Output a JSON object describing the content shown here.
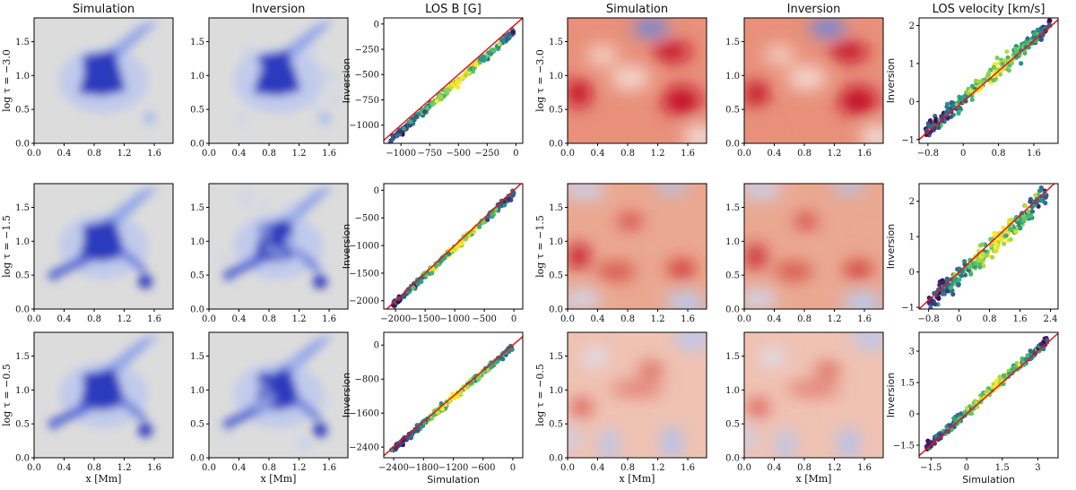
{
  "figure": {
    "column_titles": [
      "Simulation",
      "Inversion",
      "LOS B [G]",
      "Simulation",
      "Inversion",
      "LOS velocity [km/s]"
    ],
    "row_labels": [
      "log τ = −3.0",
      "log τ = −1.5",
      "log τ = −0.5"
    ],
    "map_xlabel": "x [Mm]",
    "scatter_xlabel": "Simulation",
    "scatter_ylabel": "Inversion",
    "colors": {
      "b_map_strong": "#2b3bbd",
      "b_map_background": "#dcdcdc",
      "v_map_red": "#c41125",
      "v_map_blue": "#5a86e8",
      "fit_line": "#e8141a",
      "scatter_low": "#440154",
      "scatter_mid": "#21918c",
      "scatter_high": "#fde725"
    }
  },
  "chart_data": [
    {
      "type": "heatmap",
      "title": "Simulation",
      "quantity": "LOS B",
      "row": "log τ = −3.0",
      "xlim": [
        0,
        1.85
      ],
      "ylim": [
        0,
        1.85
      ],
      "xticks": [
        "0.0",
        "0.4",
        "0.8",
        "1.2",
        "1.6"
      ],
      "yticks": [
        "0.0",
        "0.5",
        "1.0",
        "1.5"
      ]
    },
    {
      "type": "heatmap",
      "title": "Inversion",
      "quantity": "LOS B",
      "row": "log τ = −3.0",
      "xlim": [
        0,
        1.85
      ],
      "ylim": [
        0,
        1.85
      ],
      "xticks": [
        "0.0",
        "0.4",
        "0.8",
        "1.2",
        "1.6"
      ],
      "yticks": [
        "0.0",
        "0.5",
        "1.0",
        "1.5"
      ]
    },
    {
      "type": "scatter",
      "title": "LOS B [G]",
      "row": "log τ = −3.0",
      "x_range": [
        -1100,
        0
      ],
      "xlim": [
        -1150,
        60
      ],
      "ylim": [
        -1180,
        60
      ],
      "xticks": [
        -1000,
        -750,
        -500,
        -250,
        0
      ],
      "yticks": [
        -1000,
        -750,
        -500,
        -250,
        0
      ],
      "fit": {
        "slope": 1.0,
        "offset": -60
      },
      "spread": 30
    },
    {
      "type": "heatmap",
      "title": "Simulation",
      "quantity": "LOS velocity",
      "row": "log τ = −3.0",
      "xlim": [
        0,
        1.85
      ],
      "ylim": [
        0,
        1.85
      ],
      "xticks": [
        "0.0",
        "0.4",
        "0.8",
        "1.2",
        "1.6"
      ],
      "yticks": [
        "0.0",
        "0.5",
        "1.0",
        "1.5"
      ]
    },
    {
      "type": "heatmap",
      "title": "Inversion",
      "quantity": "LOS velocity",
      "row": "log τ = −3.0",
      "xlim": [
        0,
        1.85
      ],
      "ylim": [
        0,
        1.85
      ],
      "xticks": [
        "0.0",
        "0.4",
        "0.8",
        "1.2",
        "1.6"
      ],
      "yticks": [
        "0.0",
        "0.5",
        "1.0",
        "1.5"
      ]
    },
    {
      "type": "scatter",
      "title": "LOS velocity [km/s]",
      "row": "log τ = −3.0",
      "x_range": [
        -0.85,
        2.0
      ],
      "xlim": [
        -1.0,
        2.15
      ],
      "ylim": [
        -1.1,
        2.2
      ],
      "xticks": [
        -0.8,
        0.0,
        0.8,
        1.6
      ],
      "yticks": [
        -1,
        0,
        1,
        2
      ],
      "fit": {
        "slope": 1.0,
        "offset": 0.05
      },
      "spread": 0.18
    },
    {
      "type": "heatmap",
      "title": "Simulation",
      "quantity": "LOS B",
      "row": "log τ = −1.5",
      "xlim": [
        0,
        1.85
      ],
      "ylim": [
        0,
        1.85
      ],
      "xticks": [
        "0.0",
        "0.4",
        "0.8",
        "1.2",
        "1.6"
      ],
      "yticks": [
        "0.0",
        "0.5",
        "1.0",
        "1.5"
      ]
    },
    {
      "type": "heatmap",
      "title": "Inversion",
      "quantity": "LOS B",
      "row": "log τ = −1.5",
      "xlim": [
        0,
        1.85
      ],
      "ylim": [
        0,
        1.85
      ],
      "xticks": [
        "0.0",
        "0.4",
        "0.8",
        "1.2",
        "1.6"
      ],
      "yticks": [
        "0.0",
        "0.5",
        "1.0",
        "1.5"
      ]
    },
    {
      "type": "scatter",
      "title": "",
      "row": "log τ = −1.5",
      "x_range": [
        -2050,
        0
      ],
      "xlim": [
        -2200,
        150
      ],
      "ylim": [
        -2150,
        120
      ],
      "xticks": [
        -2000,
        -1500,
        -1000,
        -500,
        0
      ],
      "yticks": [
        -2000,
        -1500,
        -1000,
        -500,
        0
      ],
      "fit": {
        "slope": 1.0,
        "offset": -40
      },
      "spread": 50
    },
    {
      "type": "heatmap",
      "title": "Simulation",
      "quantity": "LOS velocity",
      "row": "log τ = −1.5",
      "xlim": [
        0,
        1.85
      ],
      "ylim": [
        0,
        1.85
      ],
      "xticks": [
        "0.0",
        "0.4",
        "0.8",
        "1.2",
        "1.6"
      ],
      "yticks": [
        "0.0",
        "0.5",
        "1.0",
        "1.5"
      ]
    },
    {
      "type": "heatmap",
      "title": "Inversion",
      "quantity": "LOS velocity",
      "row": "log τ = −1.5",
      "xlim": [
        0,
        1.85
      ],
      "ylim": [
        0,
        1.85
      ],
      "xticks": [
        "0.0",
        "0.4",
        "0.8",
        "1.2",
        "1.6"
      ],
      "yticks": [
        "0.0",
        "0.5",
        "1.0",
        "1.5"
      ]
    },
    {
      "type": "scatter",
      "title": "",
      "row": "log τ = −1.5",
      "x_range": [
        -0.8,
        2.3
      ],
      "xlim": [
        -1.05,
        2.6
      ],
      "ylim": [
        -1.05,
        2.5
      ],
      "xticks": [
        -0.8,
        0.0,
        0.8,
        1.6,
        2.4
      ],
      "yticks": [
        -1,
        0,
        1,
        2
      ],
      "fit": {
        "slope": 1.0,
        "offset": -0.1
      },
      "spread": 0.25
    },
    {
      "type": "heatmap",
      "title": "Simulation",
      "quantity": "LOS B",
      "row": "log τ = −0.5",
      "xlim": [
        0,
        1.85
      ],
      "ylim": [
        0,
        1.85
      ],
      "xticks": [
        "0.0",
        "0.4",
        "0.8",
        "1.2",
        "1.6"
      ],
      "yticks": [
        "0.0",
        "0.5",
        "1.0",
        "1.5"
      ]
    },
    {
      "type": "heatmap",
      "title": "Inversion",
      "quantity": "LOS B",
      "row": "log τ = −0.5",
      "xlim": [
        0,
        1.85
      ],
      "ylim": [
        0,
        1.85
      ],
      "xticks": [
        "0.0",
        "0.4",
        "0.8",
        "1.2",
        "1.6"
      ],
      "yticks": [
        "0.0",
        "0.5",
        "1.0",
        "1.5"
      ]
    },
    {
      "type": "scatter",
      "title": "",
      "row": "log τ = −0.5",
      "x_range": [
        -2450,
        0
      ],
      "xlim": [
        -2600,
        200
      ],
      "ylim": [
        -2650,
        300
      ],
      "xticks": [
        -2400,
        -1800,
        -1200,
        -600,
        0
      ],
      "yticks": [
        -2400,
        -1600,
        -800,
        0
      ],
      "fit": {
        "slope": 1.0,
        "offset": -40
      },
      "spread": 60
    },
    {
      "type": "heatmap",
      "title": "Simulation",
      "quantity": "LOS velocity",
      "row": "log τ = −0.5",
      "xlim": [
        0,
        1.85
      ],
      "ylim": [
        0,
        1.85
      ],
      "xticks": [
        "0.0",
        "0.4",
        "0.8",
        "1.2",
        "1.6"
      ],
      "yticks": [
        "0.0",
        "0.5",
        "1.0",
        "1.5"
      ]
    },
    {
      "type": "heatmap",
      "title": "Inversion",
      "quantity": "LOS velocity",
      "row": "log τ = −0.5",
      "xlim": [
        0,
        1.85
      ],
      "ylim": [
        0,
        1.85
      ],
      "xticks": [
        "0.0",
        "0.4",
        "0.8",
        "1.2",
        "1.6"
      ],
      "yticks": [
        "0.0",
        "0.5",
        "1.0",
        "1.5"
      ]
    },
    {
      "type": "scatter",
      "title": "",
      "row": "log τ = −0.5",
      "x_range": [
        -1.7,
        3.4
      ],
      "xlim": [
        -2.0,
        3.85
      ],
      "ylim": [
        -2.1,
        3.9
      ],
      "xticks": [
        -1.5,
        0.0,
        1.5,
        3.0
      ],
      "yticks": [
        -1.5,
        0.0,
        1.5,
        3.0
      ],
      "fit": {
        "slope": 1.0,
        "offset": 0.1
      },
      "spread": 0.2
    }
  ]
}
